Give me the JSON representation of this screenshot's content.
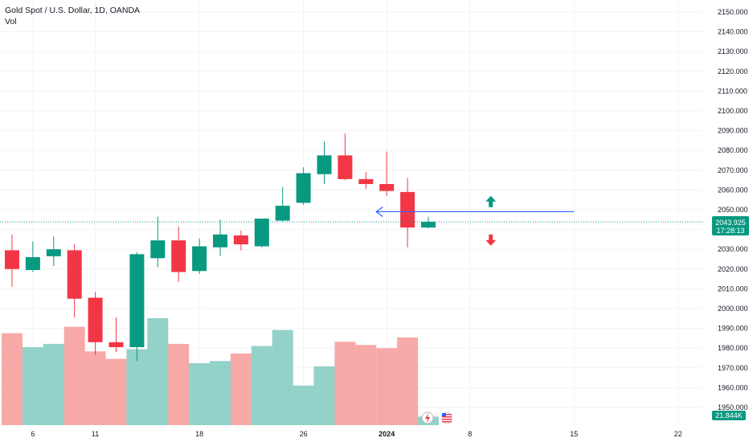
{
  "header": {
    "title": "Gold Spot / U.S. Dollar, 1D, OANDA",
    "volume_label": "Vol"
  },
  "colors": {
    "up": "#089981",
    "down": "#f23645",
    "vol_up": "#92d2c9",
    "vol_down": "#f7a9a7",
    "arrow_line": "#2962ff",
    "price_line": "#089981"
  },
  "chart_data": {
    "type": "candlestick",
    "symbol": "Gold Spot / U.S. Dollar",
    "interval": "1D",
    "source": "OANDA",
    "ylim": [
      1945,
      2155
    ],
    "y_ticks": [
      1950,
      1960,
      1970,
      1980,
      1990,
      2000,
      2010,
      2020,
      2030,
      2040,
      2050,
      2060,
      2070,
      2080,
      2090,
      2100,
      2110,
      2120,
      2130,
      2140,
      2150
    ],
    "x_ticks": [
      {
        "label": "6",
        "bar": 1
      },
      {
        "label": "11",
        "bar": 4
      },
      {
        "label": "18",
        "bar": 9
      },
      {
        "label": "26",
        "bar": 14
      },
      {
        "label": "2024",
        "bar": 18
      },
      {
        "label": "8",
        "bar": 22
      },
      {
        "label": "15",
        "bar": 27
      },
      {
        "label": "22",
        "bar": 32
      }
    ],
    "candles": [
      {
        "open": 2029.5,
        "high": 2037.5,
        "low": 2011.0,
        "close": 2020.0,
        "volume": 0.86
      },
      {
        "open": 2019.5,
        "high": 2034.0,
        "low": 2018.5,
        "close": 2026.0,
        "volume": 0.73
      },
      {
        "open": 2026.5,
        "high": 2036.5,
        "low": 2021.5,
        "close": 2030.0,
        "volume": 0.76
      },
      {
        "open": 2029.5,
        "high": 2032.5,
        "low": 1995.5,
        "close": 2005.0,
        "volume": 0.92
      },
      {
        "open": 2005.5,
        "high": 2008.5,
        "low": 1976.5,
        "close": 1983.0,
        "volume": 0.69
      },
      {
        "open": 1983.0,
        "high": 1995.5,
        "low": 1978.0,
        "close": 1980.5,
        "volume": 0.62
      },
      {
        "open": 1980.5,
        "high": 2028.5,
        "low": 1973.5,
        "close": 2027.5,
        "volume": 0.71
      },
      {
        "open": 2025.5,
        "high": 2046.5,
        "low": 2021.0,
        "close": 2034.5,
        "volume": 1.0
      },
      {
        "open": 2034.5,
        "high": 2041.5,
        "low": 2013.5,
        "close": 2018.5,
        "volume": 0.76
      },
      {
        "open": 2019.0,
        "high": 2035.5,
        "low": 2017.5,
        "close": 2031.5,
        "volume": 0.58
      },
      {
        "open": 2031.0,
        "high": 2045.0,
        "low": 2026.5,
        "close": 2037.5,
        "volume": 0.6
      },
      {
        "open": 2037.0,
        "high": 2039.5,
        "low": 2029.5,
        "close": 2032.5,
        "volume": 0.67
      },
      {
        "open": 2031.5,
        "high": 2045.5,
        "low": 2031.0,
        "close": 2045.5,
        "volume": 0.74
      },
      {
        "open": 2044.5,
        "high": 2061.5,
        "low": 2044.0,
        "close": 2052.0,
        "volume": 0.89
      },
      {
        "open": 2053.5,
        "high": 2071.5,
        "low": 2052.5,
        "close": 2068.5,
        "volume": 0.37
      },
      {
        "open": 2068.0,
        "high": 2084.5,
        "low": 2063.0,
        "close": 2077.5,
        "volume": 0.55
      },
      {
        "open": 2077.5,
        "high": 2088.5,
        "low": 2065.0,
        "close": 2065.5,
        "volume": 0.78
      },
      {
        "open": 2065.5,
        "high": 2069.0,
        "low": 2060.5,
        "close": 2063.0,
        "volume": 0.75
      },
      {
        "open": 2063.0,
        "high": 2079.5,
        "low": 2057.0,
        "close": 2059.5,
        "volume": 0.72
      },
      {
        "open": 2059.0,
        "high": 2066.0,
        "low": 2031.0,
        "close": 2041.0,
        "volume": 0.82
      },
      {
        "open": 2041.0,
        "high": 2046.5,
        "low": 2040.5,
        "close": 2043.9,
        "volume": 0.08
      }
    ],
    "annotations": {
      "horizontal_arrow_price": 2049.0,
      "horizontal_arrow_from_bar": 17.5,
      "horizontal_arrow_to_bar": 27.0,
      "up_arrow_price": 2057.0,
      "down_arrow_price": 2037.5,
      "arrows_bar": 23.0
    }
  },
  "price_tag": {
    "price": "2043.925",
    "countdown": "17:28:13",
    "value": 2043.925
  },
  "volume_tag": {
    "text": "21.844K"
  }
}
